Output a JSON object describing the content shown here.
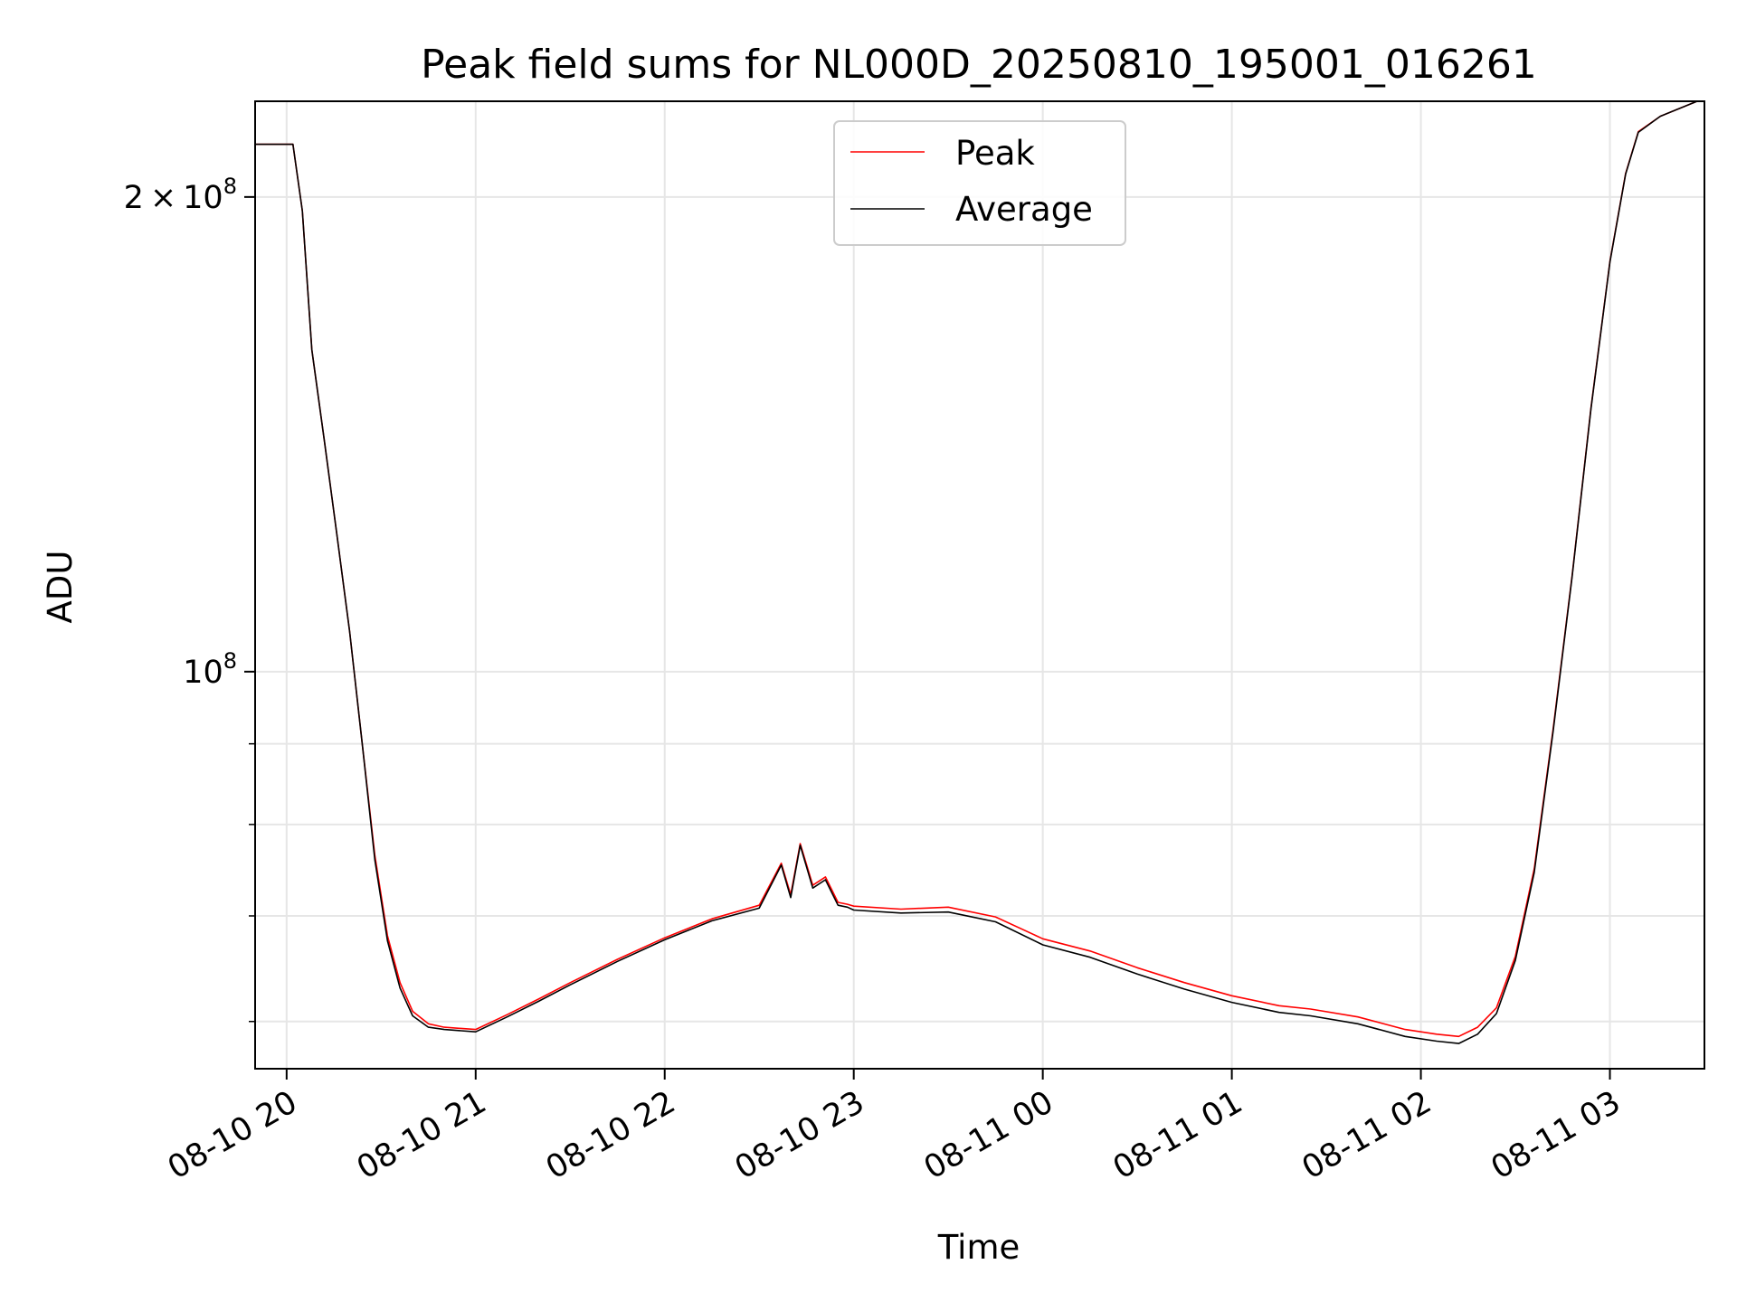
{
  "chart_data": {
    "type": "line",
    "title": "Peak field sums for NL000D_20250810_195001_016261",
    "xlabel": "Time",
    "ylabel": "ADU",
    "yscale": "log",
    "grid": true,
    "legend_placement": "upper center",
    "x_tick_labels": [
      "08-10 20",
      "08-10 21",
      "08-10 22",
      "08-10 23",
      "08-11 00",
      "08-11 01",
      "08-11 02",
      "08-11 03"
    ],
    "x_ticks": [
      "2025-08-10 20:00",
      "2025-08-10 21:00",
      "2025-08-10 22:00",
      "2025-08-10 23:00",
      "2025-08-11 00:00",
      "2025-08-11 01:00",
      "2025-08-11 02:00",
      "2025-08-11 03:00"
    ],
    "xlim": [
      "2025-08-10 19:50",
      "2025-08-11 03:30"
    ],
    "y_major_ticks": [
      {
        "value": 100000000,
        "mantissa": "",
        "exponent": "8"
      },
      {
        "value": 200000000,
        "mantissa": "2",
        "exponent": "8"
      }
    ],
    "y_minor_ticks": [
      60000000,
      70000000,
      80000000,
      90000000
    ],
    "ylim": [
      56000000,
      230000000
    ],
    "series": [
      {
        "name": "Peak",
        "color": "#ff0000",
        "x": [
          "2025-08-10 19:50",
          "2025-08-10 20:02",
          "2025-08-10 20:05",
          "2025-08-10 20:08",
          "2025-08-10 20:12",
          "2025-08-10 20:16",
          "2025-08-10 20:20",
          "2025-08-10 20:24",
          "2025-08-10 20:28",
          "2025-08-10 20:32",
          "2025-08-10 20:36",
          "2025-08-10 20:40",
          "2025-08-10 20:45",
          "2025-08-10 20:50",
          "2025-08-10 21:00",
          "2025-08-10 21:10",
          "2025-08-10 21:20",
          "2025-08-10 21:30",
          "2025-08-10 21:45",
          "2025-08-10 22:00",
          "2025-08-10 22:15",
          "2025-08-10 22:30",
          "2025-08-10 22:37",
          "2025-08-10 22:40",
          "2025-08-10 22:43",
          "2025-08-10 22:47",
          "2025-08-10 22:51",
          "2025-08-10 22:55",
          "2025-08-10 22:58",
          "2025-08-10 23:00",
          "2025-08-10 23:15",
          "2025-08-10 23:30",
          "2025-08-10 23:45",
          "2025-08-11 00:00",
          "2025-08-11 00:15",
          "2025-08-11 00:30",
          "2025-08-11 00:45",
          "2025-08-11 01:00",
          "2025-08-11 01:15",
          "2025-08-11 01:25",
          "2025-08-11 01:40",
          "2025-08-11 01:55",
          "2025-08-11 02:05",
          "2025-08-11 02:12",
          "2025-08-11 02:18",
          "2025-08-11 02:24",
          "2025-08-11 02:30",
          "2025-08-11 02:36",
          "2025-08-11 02:42",
          "2025-08-11 02:48",
          "2025-08-11 02:54",
          "2025-08-11 03:00",
          "2025-08-11 03:05",
          "2025-08-11 03:09",
          "2025-08-11 03:16",
          "2025-08-11 03:30"
        ],
        "values": [
          216000000,
          216000000,
          196000000,
          160000000,
          140000000,
          122000000,
          106000000,
          90000000,
          76500000,
          68000000,
          63500000,
          60900000,
          59800000,
          59500000,
          59300000,
          60600000,
          62000000,
          63500000,
          65700000,
          67800000,
          69700000,
          71100000,
          75600000,
          72200000,
          77800000,
          73200000,
          74100000,
          71400000,
          71200000,
          71000000,
          70700000,
          70900000,
          69900000,
          67700000,
          66500000,
          64900000,
          63500000,
          62300000,
          61400000,
          61100000,
          60400000,
          59300000,
          58900000,
          58700000,
          59500000,
          61200000,
          66000000,
          75000000,
          92000000,
          115000000,
          147000000,
          182000000,
          207000000,
          220000000,
          225000000,
          231000000
        ]
      },
      {
        "name": "Average",
        "color": "#000000",
        "x": [
          "2025-08-10 19:50",
          "2025-08-10 20:02",
          "2025-08-10 20:05",
          "2025-08-10 20:08",
          "2025-08-10 20:12",
          "2025-08-10 20:16",
          "2025-08-10 20:20",
          "2025-08-10 20:24",
          "2025-08-10 20:28",
          "2025-08-10 20:32",
          "2025-08-10 20:36",
          "2025-08-10 20:40",
          "2025-08-10 20:45",
          "2025-08-10 20:50",
          "2025-08-10 21:00",
          "2025-08-10 21:10",
          "2025-08-10 21:20",
          "2025-08-10 21:30",
          "2025-08-10 21:45",
          "2025-08-10 22:00",
          "2025-08-10 22:15",
          "2025-08-10 22:30",
          "2025-08-10 22:37",
          "2025-08-10 22:40",
          "2025-08-10 22:43",
          "2025-08-10 22:47",
          "2025-08-10 22:51",
          "2025-08-10 22:55",
          "2025-08-10 22:58",
          "2025-08-10 23:00",
          "2025-08-10 23:15",
          "2025-08-10 23:30",
          "2025-08-10 23:45",
          "2025-08-11 00:00",
          "2025-08-11 00:15",
          "2025-08-11 00:30",
          "2025-08-11 00:45",
          "2025-08-11 01:00",
          "2025-08-11 01:15",
          "2025-08-11 01:25",
          "2025-08-11 01:40",
          "2025-08-11 01:55",
          "2025-08-11 02:05",
          "2025-08-11 02:12",
          "2025-08-11 02:18",
          "2025-08-11 02:24",
          "2025-08-11 02:30",
          "2025-08-11 02:36",
          "2025-08-11 02:42",
          "2025-08-11 02:48",
          "2025-08-11 02:54",
          "2025-08-11 03:00",
          "2025-08-11 03:05",
          "2025-08-11 03:09",
          "2025-08-11 03:16",
          "2025-08-11 03:30"
        ],
        "values": [
          216000000,
          216000000,
          196000000,
          160000000,
          140000000,
          122000000,
          106000000,
          90000000,
          76000000,
          67500000,
          63000000,
          60500000,
          59500000,
          59300000,
          59100000,
          60400000,
          61800000,
          63300000,
          65500000,
          67600000,
          69500000,
          70800000,
          75400000,
          71900000,
          77600000,
          72900000,
          73800000,
          71100000,
          70900000,
          70600000,
          70300000,
          70400000,
          69400000,
          67100000,
          65900000,
          64300000,
          62900000,
          61700000,
          60800000,
          60500000,
          59800000,
          58700000,
          58300000,
          58100000,
          58900000,
          60700000,
          65600000,
          74600000,
          91700000,
          114800000,
          146800000,
          181800000,
          206800000,
          219800000,
          225000000,
          231000000
        ]
      }
    ]
  }
}
